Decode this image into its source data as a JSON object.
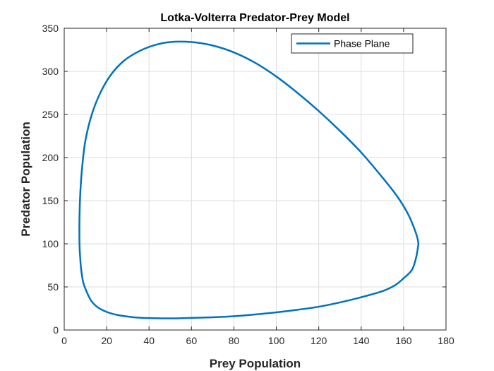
{
  "chart_data": {
    "type": "line",
    "title": "Lotka-Volterra Predator-Prey Model",
    "xlabel": "Prey Population",
    "ylabel": "Predator Population",
    "xlim": [
      0,
      180
    ],
    "ylim": [
      0,
      350
    ],
    "xticks": [
      0,
      20,
      40,
      60,
      80,
      100,
      120,
      140,
      160,
      180
    ],
    "yticks": [
      0,
      50,
      100,
      150,
      200,
      250,
      300,
      350
    ],
    "grid": true,
    "legend_position": "top-right",
    "series": [
      {
        "name": "Phase Plane",
        "color": "#0072BD",
        "x": [
          167,
          166,
          164,
          160,
          156,
          150,
          140,
          130,
          120,
          110,
          100,
          90,
          80,
          70,
          60,
          50,
          40,
          32,
          25,
          20,
          16,
          13,
          11,
          9,
          8,
          7.5,
          7.2,
          7.2,
          7.6,
          8.5,
          10,
          13,
          17,
          22,
          28,
          35,
          42,
          50,
          60,
          70,
          80,
          90,
          100,
          110,
          120,
          130,
          140,
          150,
          157,
          162,
          165,
          166.5,
          167
        ],
        "y": [
          100,
          85,
          70,
          60,
          52,
          45,
          38,
          32,
          27,
          23.5,
          20.5,
          18,
          16,
          14.8,
          14,
          13.5,
          13.8,
          15,
          17.5,
          21,
          26,
          33,
          42,
          55,
          70,
          85,
          100,
          130,
          160,
          190,
          220,
          250,
          275,
          296,
          312,
          323,
          330,
          334,
          334,
          330,
          322,
          310,
          294,
          275,
          254,
          231,
          206,
          177,
          155,
          135,
          118,
          107,
          100
        ]
      }
    ]
  }
}
